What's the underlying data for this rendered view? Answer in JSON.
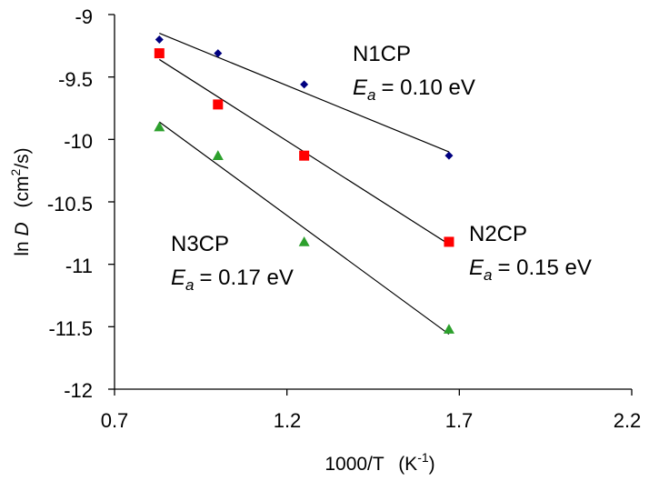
{
  "chart_data": {
    "type": "scatter",
    "title": "",
    "xlabel": {
      "main": "1000/T",
      "unit_open": "(K",
      "unit_sup": "-1",
      "unit_close": ")"
    },
    "ylabel": {
      "prefix": "ln ",
      "var": "D",
      "unit_open": "(cm",
      "unit_sup": "2",
      "unit_close": "/s)"
    },
    "xlim": [
      0.7,
      2.2
    ],
    "ylim": [
      -12,
      -9
    ],
    "x_ticks": [
      "0.7",
      "1.2",
      "1.7",
      "2.2"
    ],
    "y_ticks": [
      "-9",
      "-9.5",
      "-10",
      "-10.5",
      "-11",
      "-11.5",
      "-12"
    ],
    "x_tick_values": [
      0.7,
      1.2,
      1.7,
      2.2
    ],
    "y_tick_values": [
      -9,
      -9.5,
      -10,
      -10.5,
      -11,
      -11.5,
      -12
    ],
    "grid": false,
    "series": [
      {
        "name": "N1CP",
        "ea_label": "= 0.10 eV",
        "marker": "diamond",
        "color": "#000080",
        "x": [
          0.83,
          1.0,
          1.25,
          1.67
        ],
        "y": [
          -9.2,
          -9.31,
          -9.56,
          -10.13
        ],
        "fit": {
          "x": [
            0.83,
            1.67
          ],
          "y": [
            -9.15,
            -10.1
          ]
        }
      },
      {
        "name": "N2CP",
        "ea_label": "= 0.15 eV",
        "marker": "square",
        "color": "#ff0000",
        "x": [
          0.83,
          1.0,
          1.25,
          1.67
        ],
        "y": [
          -9.31,
          -9.72,
          -10.13,
          -10.82
        ],
        "fit": {
          "x": [
            0.83,
            1.67
          ],
          "y": [
            -9.36,
            -10.84
          ]
        }
      },
      {
        "name": "N3CP",
        "ea_label": "= 0.17 eV",
        "marker": "triangle",
        "color": "#2ca02c",
        "x": [
          0.83,
          1.0,
          1.25,
          1.67
        ],
        "y": [
          -9.9,
          -10.13,
          -10.82,
          -11.52
        ],
        "fit": {
          "x": [
            0.83,
            1.67
          ],
          "y": [
            -9.86,
            -11.56
          ]
        }
      }
    ],
    "annotations": {
      "ea_symbol": "E",
      "ea_sub": "a"
    }
  },
  "colors": {
    "axis": "#000000",
    "fit_line": "#000000"
  }
}
